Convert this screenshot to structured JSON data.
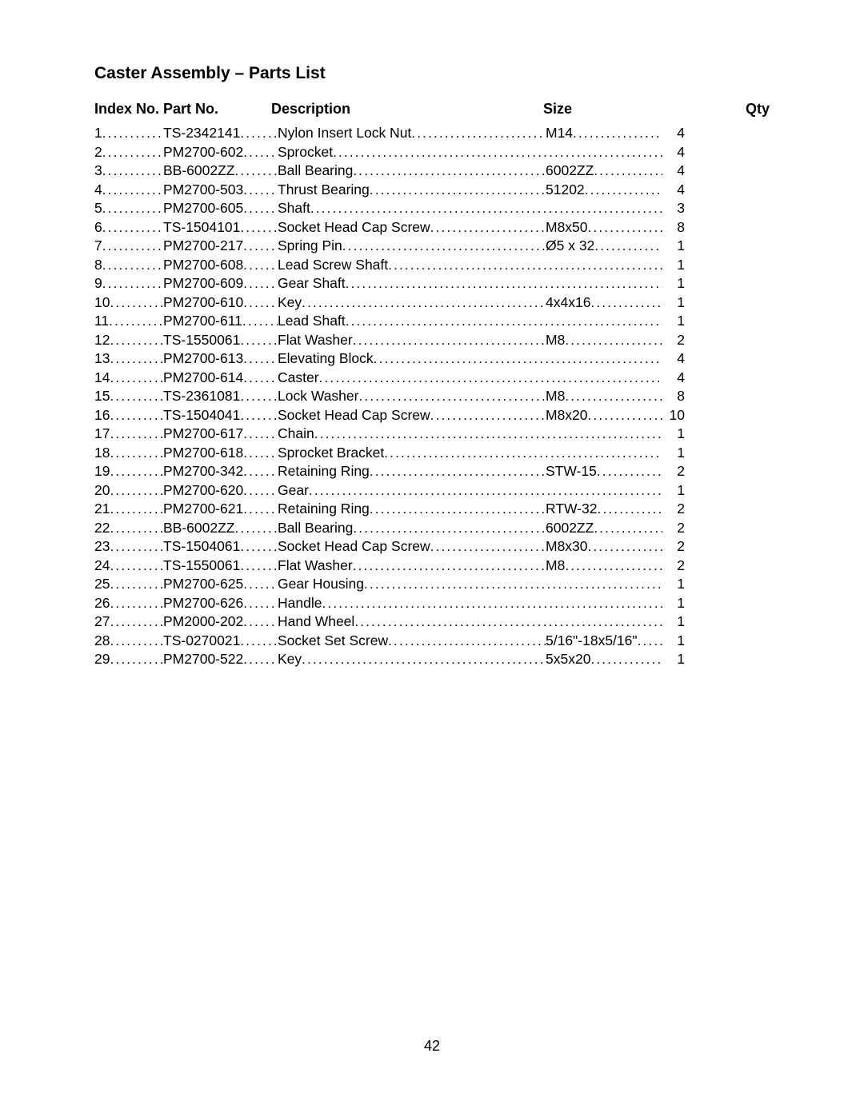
{
  "title": "Caster Assembly – Parts List",
  "page_number": "42",
  "headers": {
    "index": "Index No.",
    "part": "Part No.",
    "description": "Description",
    "size": "Size",
    "qty": "Qty"
  },
  "rows": [
    {
      "index": "1",
      "part": "TS-2342141",
      "description": "Nylon Insert Lock Nut",
      "size": "M14",
      "qty": "4"
    },
    {
      "index": "2",
      "part": "PM2700-602",
      "description": "Sprocket",
      "size": "",
      "qty": "4"
    },
    {
      "index": "3",
      "part": "BB-6002ZZ",
      "description": "Ball Bearing",
      "size": "6002ZZ",
      "qty": "4"
    },
    {
      "index": "4",
      "part": "PM2700-503",
      "description": "Thrust Bearing",
      "size": "51202",
      "qty": "4"
    },
    {
      "index": "5",
      "part": "PM2700-605",
      "description": "Shaft",
      "size": "",
      "qty": "3"
    },
    {
      "index": "6",
      "part": "TS-1504101",
      "description": "Socket Head Cap Screw",
      "size": "M8x50",
      "qty": "8"
    },
    {
      "index": "7",
      "part": "PM2700-217",
      "description": "Spring Pin",
      "size": "Ø5 x 32",
      "qty": "1"
    },
    {
      "index": "8",
      "part": "PM2700-608",
      "description": "Lead Screw Shaft",
      "size": "",
      "qty": "1"
    },
    {
      "index": "9",
      "part": "PM2700-609",
      "description": "Gear Shaft",
      "size": "",
      "qty": "1"
    },
    {
      "index": "10",
      "part": "PM2700-610",
      "description": "Key",
      "size": "4x4x16",
      "qty": "1"
    },
    {
      "index": "11",
      "part": "PM2700-611",
      "description": "Lead Shaft",
      "size": "",
      "qty": "1"
    },
    {
      "index": "12",
      "part": "TS-1550061",
      "description": "Flat Washer",
      "size": "M8",
      "qty": "2"
    },
    {
      "index": "13",
      "part": "PM2700-613",
      "description": "Elevating Block",
      "size": "",
      "qty": "4"
    },
    {
      "index": "14",
      "part": "PM2700-614",
      "description": "Caster",
      "size": "",
      "qty": "4"
    },
    {
      "index": "15",
      "part": "TS-2361081",
      "description": "Lock Washer",
      "size": "M8",
      "qty": "8"
    },
    {
      "index": "16",
      "part": "TS-1504041",
      "description": "Socket Head Cap Screw",
      "size": "M8x20",
      "qty": "10"
    },
    {
      "index": "17",
      "part": "PM2700-617",
      "description": "Chain",
      "size": "",
      "qty": "1"
    },
    {
      "index": "18",
      "part": "PM2700-618",
      "description": "Sprocket Bracket",
      "size": "",
      "qty": "1"
    },
    {
      "index": "19",
      "part": "PM2700-342",
      "description": "Retaining Ring",
      "size": "STW-15",
      "qty": "2"
    },
    {
      "index": "20",
      "part": "PM2700-620",
      "description": "Gear",
      "size": "",
      "qty": "1"
    },
    {
      "index": "21",
      "part": "PM2700-621",
      "description": "Retaining Ring",
      "size": "RTW-32",
      "qty": "2"
    },
    {
      "index": "22",
      "part": "BB-6002ZZ",
      "description": "Ball Bearing",
      "size": "6002ZZ",
      "qty": "2"
    },
    {
      "index": "23",
      "part": "TS-1504061",
      "description": "Socket Head Cap Screw",
      "size": "M8x30",
      "qty": "2"
    },
    {
      "index": "24",
      "part": "TS-1550061",
      "description": "Flat Washer",
      "size": "M8",
      "qty": "2"
    },
    {
      "index": "25",
      "part": "PM2700-625",
      "description": "Gear Housing",
      "size": "",
      "qty": "1"
    },
    {
      "index": "26",
      "part": "PM2700-626",
      "description": "Handle",
      "size": "",
      "qty": "1"
    },
    {
      "index": "27",
      "part": "PM2000-202",
      "description": "Hand Wheel",
      "size": "",
      "qty": "1"
    },
    {
      "index": "28",
      "part": "TS-0270021",
      "description": "Socket Set Screw",
      "size": "5/16\"-18x5/16\"",
      "qty": "1"
    },
    {
      "index": "29",
      "part": "PM2700-522",
      "description": "Key",
      "size": "5x5x20",
      "qty": "1"
    }
  ]
}
